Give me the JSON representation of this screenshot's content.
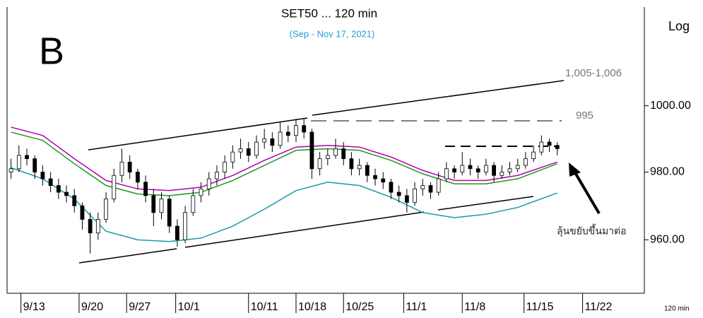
{
  "chart_data": {
    "type": "candlestick",
    "title": "SET50 ... 120 min",
    "subtitle": "(Sep - Nov 17, 2021)",
    "panel_label": "B",
    "scale_label": "Log",
    "interval_label": "120 min",
    "log_scale": true,
    "ylim": [
      944.5,
      1030.5
    ],
    "yticks": [
      {
        "value": 960,
        "label": "960.00"
      },
      {
        "value": 980,
        "label": "980.00"
      },
      {
        "value": 1000,
        "label": "1000.00"
      }
    ],
    "xlim": [
      -0.5,
      80
    ],
    "xticks": [
      {
        "value": 1.25,
        "label": "9/13"
      },
      {
        "value": 8.6,
        "label": "9/20"
      },
      {
        "value": 14.6,
        "label": "9/27"
      },
      {
        "value": 20.8,
        "label": "10/1"
      },
      {
        "value": 30,
        "label": "10/11"
      },
      {
        "value": 36,
        "label": "10/18"
      },
      {
        "value": 42,
        "label": "10/25"
      },
      {
        "value": 49.6,
        "label": "11/1"
      },
      {
        "value": 57,
        "label": "11/8"
      },
      {
        "value": 64.8,
        "label": "11/15"
      },
      {
        "value": 72.2,
        "label": "11/22"
      }
    ],
    "ohlc": [
      [
        980,
        984,
        978,
        981
      ],
      [
        981,
        988,
        980,
        985
      ],
      [
        985,
        987,
        982,
        984
      ],
      [
        984,
        985,
        978,
        980
      ],
      [
        980,
        982,
        976,
        978
      ],
      [
        978,
        980,
        974,
        976
      ],
      [
        976,
        978,
        972,
        974
      ],
      [
        974,
        976,
        971,
        973
      ],
      [
        973,
        975,
        968,
        970
      ],
      [
        970,
        971,
        963,
        966
      ],
      [
        966,
        968,
        956,
        962
      ],
      [
        962,
        968,
        960,
        966
      ],
      [
        966,
        974,
        965,
        972
      ],
      [
        972,
        981,
        971,
        979
      ],
      [
        979,
        987,
        977,
        983
      ],
      [
        983,
        985,
        978,
        980
      ],
      [
        980,
        981,
        975,
        977
      ],
      [
        977,
        979,
        971,
        973
      ],
      [
        973,
        975,
        964,
        968
      ],
      [
        968,
        974,
        966,
        972
      ],
      [
        972,
        973,
        962,
        964
      ],
      [
        964,
        966,
        958,
        960
      ],
      [
        960,
        970,
        959,
        968
      ],
      [
        968,
        975,
        967,
        973
      ],
      [
        973,
        977,
        971,
        975
      ],
      [
        975,
        980,
        973,
        978
      ],
      [
        978,
        982,
        976,
        980
      ],
      [
        980,
        985,
        978,
        983
      ],
      [
        983,
        988,
        981,
        986
      ],
      [
        986,
        990,
        984,
        987
      ],
      [
        987,
        989,
        983,
        985
      ],
      [
        985,
        991,
        984,
        989
      ],
      [
        989,
        993,
        987,
        990
      ],
      [
        990,
        992,
        986,
        988
      ],
      [
        988,
        995,
        987,
        992
      ],
      [
        992,
        994,
        989,
        991
      ],
      [
        991,
        996,
        989,
        994
      ],
      [
        994,
        996,
        990,
        992
      ],
      [
        992,
        993,
        978,
        981
      ],
      [
        981,
        986,
        979,
        984
      ],
      [
        984,
        987,
        982,
        985
      ],
      [
        985,
        990,
        984,
        987
      ],
      [
        987,
        989,
        982,
        984
      ],
      [
        984,
        986,
        979,
        981
      ],
      [
        981,
        984,
        979,
        982
      ],
      [
        982,
        983,
        977,
        979
      ],
      [
        979,
        981,
        976,
        978
      ],
      [
        978,
        980,
        975,
        977
      ],
      [
        977,
        978,
        972,
        974
      ],
      [
        974,
        976,
        971,
        973
      ],
      [
        973,
        975,
        968,
        971
      ],
      [
        971,
        977,
        970,
        975
      ],
      [
        975,
        978,
        973,
        976
      ],
      [
        976,
        977,
        972,
        974
      ],
      [
        974,
        980,
        973,
        978
      ],
      [
        978,
        983,
        977,
        981
      ],
      [
        981,
        982,
        978,
        980
      ],
      [
        980,
        986,
        979,
        982
      ],
      [
        982,
        984,
        979,
        981
      ],
      [
        981,
        982,
        978,
        980
      ],
      [
        980,
        984,
        979,
        982
      ],
      [
        982,
        983,
        977,
        979
      ],
      [
        979,
        982,
        978,
        980
      ],
      [
        980,
        983,
        979,
        981
      ],
      [
        981,
        984,
        980,
        982
      ],
      [
        982,
        986,
        981,
        984
      ],
      [
        984,
        988,
        983,
        986
      ],
      [
        986,
        991,
        985,
        989
      ],
      [
        989,
        990,
        986,
        988
      ],
      [
        988,
        989,
        985,
        987
      ]
    ],
    "series": [
      {
        "color": "#b000b0",
        "x": [
          0,
          4,
          8,
          12,
          16,
          20,
          24,
          28,
          32,
          36,
          40,
          44,
          48,
          52,
          56,
          60,
          64,
          69
        ],
        "values": [
          993.5,
          991,
          984,
          977.5,
          975,
          974.5,
          975.5,
          979,
          983.5,
          987.5,
          988,
          987.5,
          984.5,
          980.5,
          977.5,
          977.5,
          979,
          983
        ]
      },
      {
        "color": "#1a9a1a",
        "x": [
          0,
          4,
          8,
          12,
          16,
          20,
          24,
          28,
          32,
          36,
          40,
          44,
          48,
          52,
          56,
          60,
          64,
          69
        ],
        "values": [
          992,
          989.5,
          982.5,
          976,
          973.5,
          973,
          974,
          977.5,
          982,
          986.5,
          987,
          986.5,
          983.5,
          979.5,
          976.5,
          976.5,
          978,
          982.5
        ]
      },
      {
        "color": "#1a9aa8",
        "x": [
          0,
          4,
          8,
          12,
          16,
          20,
          24,
          28,
          32,
          36,
          40,
          44,
          48,
          52,
          56,
          60,
          64,
          69
        ],
        "values": [
          981.3,
          978,
          972,
          962.5,
          960,
          959.5,
          960.5,
          964,
          969,
          974.5,
          977,
          976,
          972.5,
          968,
          966.5,
          967.5,
          969.5,
          973.8
        ]
      }
    ],
    "annotations": [
      "1,005-1,006",
      "995",
      "ลุ้นขยับขึ้นมาต่อ"
    ]
  }
}
